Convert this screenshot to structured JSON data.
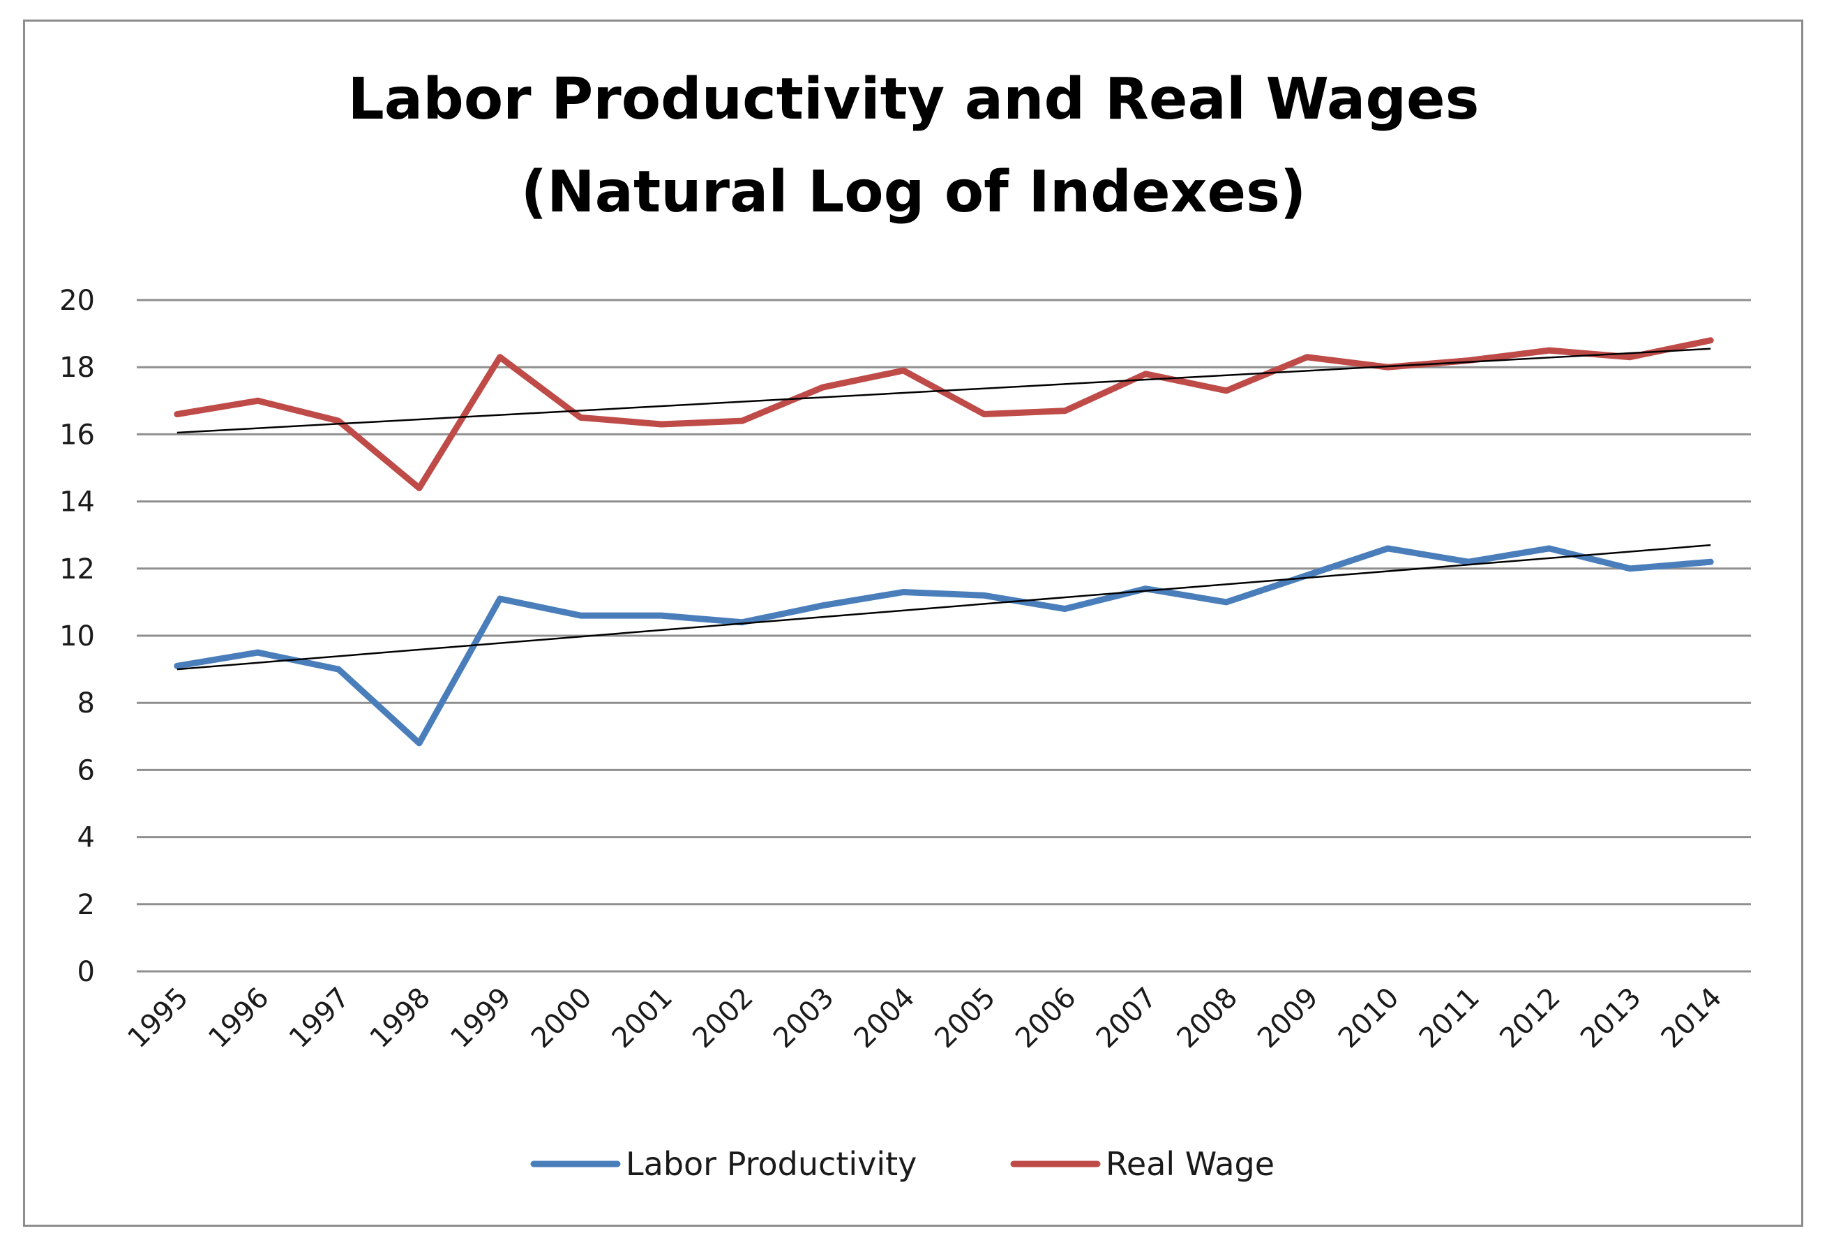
{
  "chart_data": {
    "type": "line",
    "title": "Labor Productivity and Real Wages",
    "subtitle": "(Natural Log of Indexes)",
    "xlabel": "",
    "ylabel": "",
    "ylim": [
      0,
      20
    ],
    "yticks": [
      0,
      2,
      4,
      6,
      8,
      10,
      12,
      14,
      16,
      18,
      20
    ],
    "grid": true,
    "legend": "bottom",
    "categories": [
      "1995",
      "1996",
      "1997",
      "1998",
      "1999",
      "2000",
      "2001",
      "2002",
      "2003",
      "2004",
      "2005",
      "2006",
      "2007",
      "2008",
      "2009",
      "2010",
      "2011",
      "2012",
      "2013",
      "2014"
    ],
    "series": [
      {
        "name": "Labor Productivity",
        "color": "#4a7ebb",
        "values": [
          9.1,
          9.5,
          9.0,
          6.8,
          11.1,
          10.6,
          10.6,
          10.4,
          10.9,
          11.3,
          11.2,
          10.8,
          11.4,
          11.0,
          11.8,
          12.6,
          12.2,
          12.6,
          12.0,
          12.2
        ]
      },
      {
        "name": "Real Wage",
        "color": "#be4b48",
        "values": [
          16.6,
          17.0,
          16.4,
          14.4,
          18.3,
          16.5,
          16.3,
          16.4,
          17.4,
          17.9,
          16.6,
          16.7,
          17.8,
          17.3,
          18.3,
          18.0,
          18.2,
          18.5,
          18.3,
          18.8
        ]
      }
    ],
    "trendlines": [
      {
        "series": "Labor Productivity",
        "start": 9.0,
        "end": 12.7,
        "color": "#000000"
      },
      {
        "series": "Real Wage",
        "start": 16.05,
        "end": 18.55,
        "color": "#000000"
      }
    ]
  }
}
